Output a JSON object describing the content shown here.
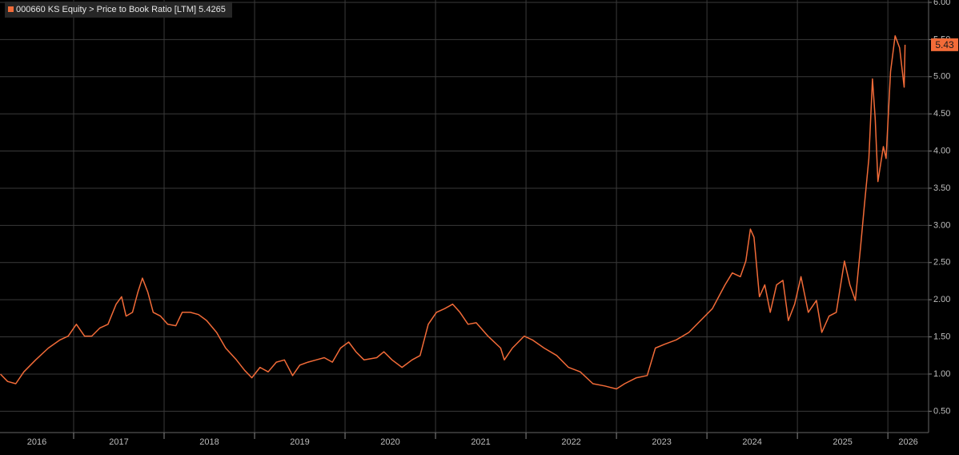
{
  "chart_data": {
    "type": "line",
    "series": [
      {
        "name": "000660 KS Equity > Price to Book Ratio [LTM]",
        "color": "#f26b38",
        "values": [
          1.0,
          0.9,
          0.87,
          1.03,
          1.19,
          1.35,
          1.46,
          1.51,
          1.67,
          1.51,
          1.51,
          1.62,
          1.67,
          1.94,
          2.04,
          1.78,
          1.83,
          2.1,
          2.29,
          2.1,
          1.83,
          1.78,
          1.67,
          1.65,
          1.83,
          1.83,
          1.8,
          1.72,
          1.56,
          1.35,
          1.19,
          1.05,
          0.95,
          1.09,
          1.03,
          1.16,
          1.19,
          0.98,
          1.12,
          1.16,
          1.19,
          1.22,
          1.16,
          1.35,
          1.43,
          1.3,
          1.19,
          1.22,
          1.3,
          1.19,
          1.09,
          1.19,
          1.25,
          1.67,
          1.83,
          1.88,
          1.94,
          1.83,
          1.67,
          1.69,
          1.51,
          1.35,
          1.19,
          1.35,
          1.51,
          1.46,
          1.35,
          1.25,
          1.09,
          1.03,
          0.87,
          0.84,
          0.8,
          0.87,
          0.95,
          0.98,
          1.35,
          1.4,
          1.46,
          1.56,
          1.72,
          1.88,
          2.2,
          2.36,
          2.31,
          2.52,
          2.95,
          2.84,
          2.04,
          2.2,
          1.83,
          2.2,
          2.26,
          1.72,
          1.94,
          2.31,
          1.83,
          1.99,
          1.56,
          1.78,
          1.83,
          2.52,
          2.2,
          1.99,
          2.73,
          3.27,
          3.9,
          4.97,
          4.44,
          3.59,
          4.06,
          3.9,
          5.07,
          5.55,
          5.39,
          4.86,
          5.43
        ]
      }
    ],
    "x": [
      2016.19,
      2016.27,
      2016.36,
      2016.45,
      2016.58,
      2016.72,
      2016.85,
      2016.94,
      2017.03,
      2017.12,
      2017.2,
      2017.29,
      2017.38,
      2017.47,
      2017.53,
      2017.58,
      2017.65,
      2017.71,
      2017.76,
      2017.82,
      2017.88,
      2017.96,
      2018.04,
      2018.13,
      2018.2,
      2018.29,
      2018.38,
      2018.47,
      2018.58,
      2018.68,
      2018.8,
      2018.89,
      2018.97,
      2019.06,
      2019.15,
      2019.24,
      2019.33,
      2019.42,
      2019.5,
      2019.59,
      2019.68,
      2019.77,
      2019.86,
      2019.95,
      2020.04,
      2020.12,
      2020.21,
      2020.35,
      2020.43,
      2020.52,
      2020.63,
      2020.74,
      2020.83,
      2020.92,
      2021.01,
      2021.1,
      2021.19,
      2021.27,
      2021.36,
      2021.45,
      2021.58,
      2021.72,
      2021.76,
      2021.85,
      2021.98,
      2022.07,
      2022.2,
      2022.34,
      2022.47,
      2022.6,
      2022.74,
      2022.87,
      2023.0,
      2023.09,
      2023.22,
      2023.34,
      2023.43,
      2023.53,
      2023.66,
      2023.8,
      2023.93,
      2024.06,
      2024.2,
      2024.28,
      2024.37,
      2024.43,
      2024.48,
      2024.52,
      2024.58,
      2024.64,
      2024.7,
      2024.77,
      2024.84,
      2024.9,
      2024.97,
      2025.04,
      2025.12,
      2025.21,
      2025.27,
      2025.35,
      2025.43,
      2025.52,
      2025.58,
      2025.64,
      2025.7,
      2025.74,
      2025.79,
      2025.83,
      2025.86,
      2025.89,
      2025.95,
      2025.98,
      2026.03,
      2026.08,
      2026.13,
      2026.18,
      2026.19
    ],
    "legend_value": 5.4265,
    "price_tag": "5.43",
    "xlim": [
      2016.186,
      2026.45
    ],
    "xticks": [
      {
        "value": 2016,
        "label": "2016"
      },
      {
        "value": 2017,
        "label": "2017"
      },
      {
        "value": 2018,
        "label": "2018"
      },
      {
        "value": 2019,
        "label": "2019"
      },
      {
        "value": 2020,
        "label": "2020"
      },
      {
        "value": 2021,
        "label": "2021"
      },
      {
        "value": 2022,
        "label": "2022"
      },
      {
        "value": 2023,
        "label": "2023"
      },
      {
        "value": 2024,
        "label": "2024"
      },
      {
        "value": 2025,
        "label": "2025"
      },
      {
        "value": 2026,
        "label": "2026"
      }
    ],
    "ylim": [
      0.2128,
      6.032
    ],
    "yticks": [
      {
        "value": 0.5,
        "label": "0.50"
      },
      {
        "value": 1,
        "label": "1.00"
      },
      {
        "value": 1.5,
        "label": "1.50"
      },
      {
        "value": 2,
        "label": "2.00"
      },
      {
        "value": 2.5,
        "label": "2.50"
      },
      {
        "value": 3,
        "label": "3.00"
      },
      {
        "value": 3.5,
        "label": "3.50"
      },
      {
        "value": 4,
        "label": "4.00"
      },
      {
        "value": 4.5,
        "label": "4.50"
      },
      {
        "value": 5,
        "label": "5.00"
      },
      {
        "value": 5.5,
        "label": "5.50"
      },
      {
        "value": 6,
        "label": "6.00"
      }
    ],
    "grid": true
  }
}
